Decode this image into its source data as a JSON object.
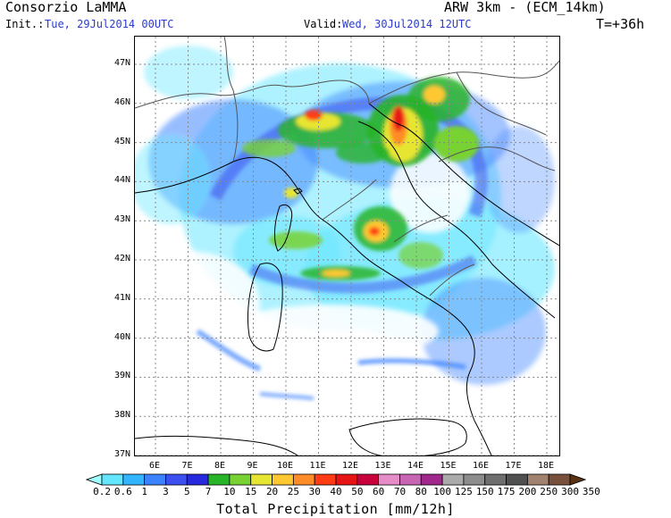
{
  "header": {
    "org": "Consorzio LaMMA",
    "model": "ARW 3km - (ECM_14km)",
    "init_label": "Init.:",
    "init_value": "Tue, 29Jul2014 00UTC",
    "valid_label": "Valid:",
    "valid_value": "Wed, 30Jul2014 12UTC",
    "lead_time": "T=+36h"
  },
  "map": {
    "lat_labels": [
      "47N",
      "46N",
      "45N",
      "44N",
      "43N",
      "42N",
      "41N",
      "40N",
      "39N",
      "38N",
      "37N"
    ],
    "lon_labels": [
      "6E",
      "7E",
      "8E",
      "9E",
      "10E",
      "11E",
      "12E",
      "13E",
      "14E",
      "15E",
      "16E",
      "17E",
      "18E"
    ],
    "grid": true
  },
  "legend": {
    "title": "Total Precipitation [mm/12h]",
    "labels": [
      "0.2",
      "0.6",
      "1",
      "3",
      "5",
      "7",
      "10",
      "15",
      "20",
      "25",
      "30",
      "40",
      "50",
      "60",
      "70",
      "80",
      "100",
      "125",
      "150",
      "175",
      "200",
      "250",
      "300",
      "350"
    ],
    "colors": [
      "#a0ffff",
      "#64e6ff",
      "#32b4ff",
      "#3c82ff",
      "#3c50f0",
      "#2828dc",
      "#28b428",
      "#78d232",
      "#e6e632",
      "#ffc832",
      "#ff8c28",
      "#ff3c14",
      "#e61414",
      "#c8003c",
      "#e68cc8",
      "#c864b4",
      "#a0288c",
      "#aaaaaa",
      "#8c8c8c",
      "#6e6e6e",
      "#505050",
      "#a0826e",
      "#78503c",
      "#5a3214"
    ]
  }
}
